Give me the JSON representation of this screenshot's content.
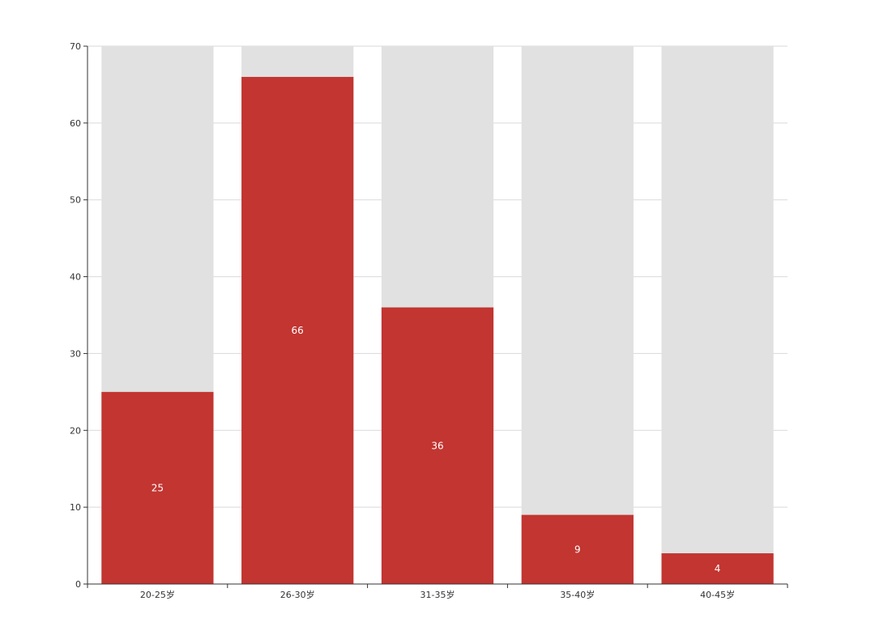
{
  "chart_data": {
    "type": "bar",
    "categories": [
      "20-25岁",
      "26-30岁",
      "31-35岁",
      "35-40岁",
      "40-45岁"
    ],
    "values": [
      25,
      66,
      36,
      9,
      4
    ],
    "background_bar_value": 70,
    "ylim": [
      0,
      70
    ],
    "yticks": [
      0,
      10,
      20,
      30,
      40,
      50,
      60,
      70
    ],
    "grid": true,
    "show_data_labels": true,
    "colors": {
      "bar": "#c23531",
      "background_bar": "#e1e1e1",
      "grid": "#d9d9d9",
      "axis": "#333333",
      "label": "#ffffff"
    }
  }
}
